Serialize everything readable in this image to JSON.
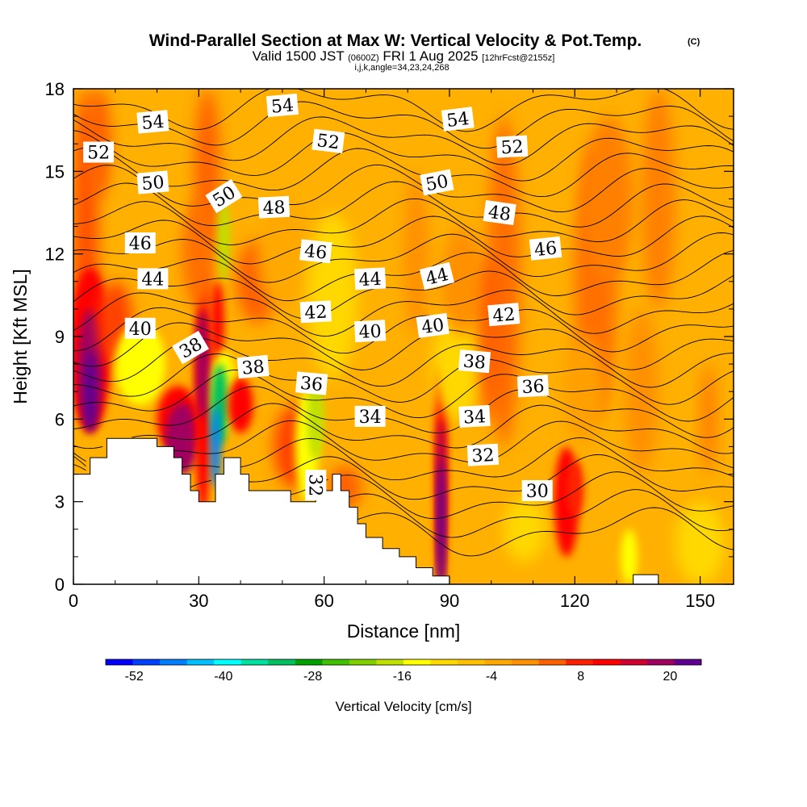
{
  "chart_data": {
    "type": "heatmap",
    "title": "Wind-Parallel Section at Max W: Vertical Velocity & Pot.Temp.",
    "title_mark": "(C)",
    "subtitle": {
      "valid": "Valid 1500 JST",
      "utc": "(0600Z)",
      "date": "FRI 1 Aug 2025",
      "forecast": "[12hrFcst@2155z]"
    },
    "params": "i,j,k,angle=34,23,24,268",
    "xlabel": "Distance [nm]",
    "ylabel": "Height [Kft MSL]",
    "xlim": [
      0,
      158
    ],
    "ylim": [
      0,
      18
    ],
    "x_ticks": [
      "0",
      "30",
      "60",
      "90",
      "120",
      "150"
    ],
    "y_ticks": [
      "0",
      "3",
      "6",
      "9",
      "12",
      "15",
      "18"
    ],
    "colorbar": {
      "label": "Vertical Velocity [cm/s]",
      "tick_labels": [
        "-52",
        "-40",
        "-28",
        "-16",
        "-4",
        "8",
        "20"
      ],
      "min": -54,
      "max": 26,
      "step": 4,
      "colors": [
        "#0000ff",
        "#0040ff",
        "#0080ff",
        "#00c0ff",
        "#00ffff",
        "#00e0a0",
        "#00c060",
        "#00a000",
        "#40c000",
        "#80d000",
        "#c0e000",
        "#ffff00",
        "#ffd800",
        "#ffc000",
        "#ffa800",
        "#ff9000",
        "#ff6000",
        "#ff2000",
        "#ff0000",
        "#d00030",
        "#a00060",
        "#600090"
      ]
    },
    "terrain_kft": [
      [
        0,
        4
      ],
      [
        4,
        4
      ],
      [
        4,
        4.6
      ],
      [
        8,
        4.6
      ],
      [
        8,
        5.3
      ],
      [
        20,
        5.3
      ],
      [
        20,
        5
      ],
      [
        24,
        5
      ],
      [
        24,
        4.6
      ],
      [
        26,
        4.6
      ],
      [
        26,
        4
      ],
      [
        28,
        4
      ],
      [
        28,
        3.4
      ],
      [
        30,
        3.4
      ],
      [
        30,
        3
      ],
      [
        34,
        3
      ],
      [
        34,
        4
      ],
      [
        36,
        4
      ],
      [
        36,
        4.6
      ],
      [
        40,
        4.6
      ],
      [
        40,
        4
      ],
      [
        42,
        4
      ],
      [
        42,
        3.4
      ],
      [
        52,
        3.4
      ],
      [
        52,
        3
      ],
      [
        58,
        3
      ],
      [
        58,
        3.4
      ],
      [
        62,
        3.4
      ],
      [
        62,
        4
      ],
      [
        64,
        4
      ],
      [
        64,
        3.4
      ],
      [
        66,
        3.4
      ],
      [
        66,
        2.8
      ],
      [
        68,
        2.8
      ],
      [
        68,
        2.2
      ],
      [
        70,
        2.2
      ],
      [
        70,
        1.7
      ],
      [
        74,
        1.7
      ],
      [
        74,
        1.3
      ],
      [
        78,
        1.3
      ],
      [
        78,
        1
      ],
      [
        82,
        1
      ],
      [
        82,
        0.6
      ],
      [
        86,
        0.6
      ],
      [
        86,
        0.3
      ],
      [
        90,
        0.3
      ],
      [
        90,
        0
      ],
      [
        122,
        0
      ],
      [
        134,
        0
      ],
      [
        134,
        0.35
      ],
      [
        140,
        0.35
      ],
      [
        140,
        0
      ],
      [
        158,
        0
      ]
    ],
    "theta_labels": [
      {
        "text": "54",
        "x": 19,
        "y": 16.8,
        "angle": -5
      },
      {
        "text": "54",
        "x": 50,
        "y": 17.4,
        "angle": -5
      },
      {
        "text": "54",
        "x": 92,
        "y": 16.9,
        "angle": -7
      },
      {
        "text": "52",
        "x": 6,
        "y": 15.7,
        "angle": 0
      },
      {
        "text": "52",
        "x": 61,
        "y": 16.1,
        "angle": 7
      },
      {
        "text": "52",
        "x": 105,
        "y": 15.9,
        "angle": -3
      },
      {
        "text": "50",
        "x": 19,
        "y": 14.6,
        "angle": -5
      },
      {
        "text": "50",
        "x": 36,
        "y": 14.1,
        "angle": -32
      },
      {
        "text": "50",
        "x": 87,
        "y": 14.6,
        "angle": -11
      },
      {
        "text": "48",
        "x": 48,
        "y": 13.7,
        "angle": -3
      },
      {
        "text": "48",
        "x": 102,
        "y": 13.5,
        "angle": 8
      },
      {
        "text": "46",
        "x": 16,
        "y": 12.4,
        "angle": 0
      },
      {
        "text": "46",
        "x": 58,
        "y": 12.1,
        "angle": 6
      },
      {
        "text": "46",
        "x": 113,
        "y": 12.2,
        "angle": -6
      },
      {
        "text": "44",
        "x": 19,
        "y": 11.1,
        "angle": 0
      },
      {
        "text": "44",
        "x": 71,
        "y": 11.1,
        "angle": -3
      },
      {
        "text": "44",
        "x": 87,
        "y": 11.2,
        "angle": -14
      },
      {
        "text": "42",
        "x": 58,
        "y": 9.9,
        "angle": -3
      },
      {
        "text": "42",
        "x": 103,
        "y": 9.8,
        "angle": -5
      },
      {
        "text": "40",
        "x": 16,
        "y": 9.3,
        "angle": 0
      },
      {
        "text": "40",
        "x": 71,
        "y": 9.2,
        "angle": -3
      },
      {
        "text": "40",
        "x": 86,
        "y": 9.4,
        "angle": -8
      },
      {
        "text": "38",
        "x": 28,
        "y": 8.6,
        "angle": -30
      },
      {
        "text": "38",
        "x": 43,
        "y": 7.9,
        "angle": -5
      },
      {
        "text": "38",
        "x": 96,
        "y": 8.1,
        "angle": 5
      },
      {
        "text": "36",
        "x": 57,
        "y": 7.3,
        "angle": 5
      },
      {
        "text": "36",
        "x": 110,
        "y": 7.2,
        "angle": -3
      },
      {
        "text": "34",
        "x": 71,
        "y": 6.1,
        "angle": 0
      },
      {
        "text": "34",
        "x": 96,
        "y": 6.1,
        "angle": -3
      },
      {
        "text": "32",
        "x": 58,
        "y": 3.6,
        "angle": 90
      },
      {
        "text": "32",
        "x": 98,
        "y": 4.7,
        "angle": -3
      },
      {
        "text": "30",
        "x": 111,
        "y": 3.4,
        "angle": 0
      }
    ]
  }
}
